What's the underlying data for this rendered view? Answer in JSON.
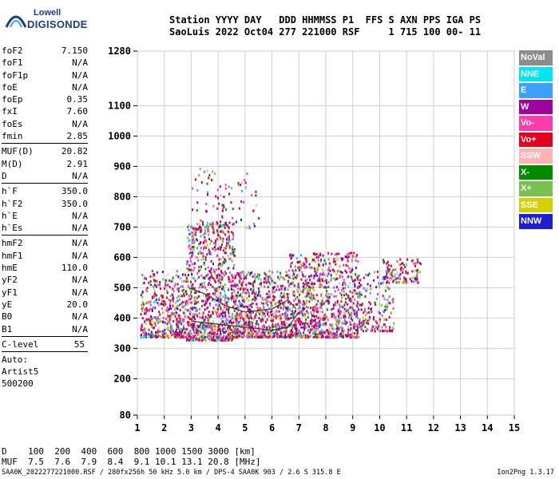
{
  "logo": {
    "line1": "Lowell",
    "line2": "DIGISONDE"
  },
  "header": {
    "line1": "Station YYYY DAY   DDD HHMMSS P1  FFS S AXN PPS IGA PS",
    "line2": "SaoLuis 2022 Oct04 277 221000 RSF     1 715 100 00- 11"
  },
  "params": {
    "group1": [
      {
        "name": "foF2",
        "value": "7.150"
      },
      {
        "name": "foF1",
        "value": "N/A"
      },
      {
        "name": "foF1p",
        "value": "N/A"
      },
      {
        "name": "foE",
        "value": "N/A"
      },
      {
        "name": "foEp",
        "value": "0.35"
      },
      {
        "name": "fxI",
        "value": "7.60"
      },
      {
        "name": "foEs",
        "value": "N/A"
      },
      {
        "name": "fmin",
        "value": "2.85"
      }
    ],
    "group2": [
      {
        "name": "MUF(D)",
        "value": "20.82"
      },
      {
        "name": "M(D)",
        "value": "2.91"
      },
      {
        "name": "D",
        "value": "N/A"
      }
    ],
    "group3": [
      {
        "name": "h`F",
        "value": "350.0"
      },
      {
        "name": "h`F2",
        "value": "350.0"
      },
      {
        "name": "h`E",
        "value": "N/A"
      },
      {
        "name": "h`Es",
        "value": "N/A"
      }
    ],
    "group4": [
      {
        "name": "hmF2",
        "value": "N/A"
      },
      {
        "name": "hmF1",
        "value": "N/A"
      },
      {
        "name": "hmE",
        "value": "110.0"
      },
      {
        "name": "yF2",
        "value": "N/A"
      },
      {
        "name": "yF1",
        "value": "N/A"
      },
      {
        "name": "yE",
        "value": "20.0"
      },
      {
        "name": "B0",
        "value": "N/A"
      },
      {
        "name": "B1",
        "value": "N/A"
      }
    ],
    "clevel": {
      "name": "C-level",
      "value": "55"
    },
    "auto": [
      "Auto:",
      "Artist5",
      "500200"
    ]
  },
  "legend": [
    {
      "label": "NoVal",
      "color": "#8c8c8c"
    },
    {
      "label": "NNE",
      "color": "#00e5ee"
    },
    {
      "label": "E",
      "color": "#3ca0ff"
    },
    {
      "label": "W",
      "color": "#a000a0"
    },
    {
      "label": "Vo-",
      "color": "#ff3caa"
    },
    {
      "label": "Vo+",
      "color": "#e6001e"
    },
    {
      "label": "SSW",
      "color": "#ffb4b4"
    },
    {
      "label": "X-",
      "color": "#008c00"
    },
    {
      "label": "X+",
      "color": "#78c050"
    },
    {
      "label": "SSE",
      "color": "#d2d200"
    },
    {
      "label": "NNW",
      "color": "#1e1ed2"
    }
  ],
  "muf_table": {
    "line1": "D    100  200  400  600  800 1000 1500 3000 [km]",
    "line2": "MUF  7.5  7.6  7.9  8.4  9.1 10.1 13.1 20.8 [MHz]"
  },
  "footer": "SAA0K_2022277221000.RSF / 280fx256h 50 kHz 5.0 km / DPS-4 SAA0K 903 / 2.6 S 315.8 E",
  "version": "Ion2Png 1.3.17",
  "chart_data": {
    "type": "scatter",
    "xlim": [
      1,
      15
    ],
    "ylim": [
      80,
      1280
    ],
    "xticks": [
      1,
      2,
      3,
      4,
      5,
      6,
      7,
      8,
      9,
      10,
      11,
      12,
      13,
      14,
      15
    ],
    "yticks": [
      80,
      200,
      300,
      400,
      500,
      600,
      700,
      800,
      900,
      1000,
      1100,
      1280
    ],
    "grid": true,
    "clusters": [
      {
        "x": [
          1.1,
          2.8
        ],
        "y": [
          340,
          560
        ],
        "n": 420
      },
      {
        "x": [
          2.8,
          4.6
        ],
        "y": [
          330,
          720
        ],
        "n": 900
      },
      {
        "x": [
          4.6,
          6.6
        ],
        "y": [
          340,
          560
        ],
        "n": 700
      },
      {
        "x": [
          6.6,
          9.2
        ],
        "y": [
          340,
          620
        ],
        "n": 900
      },
      {
        "x": [
          9.2,
          10.5
        ],
        "y": [
          360,
          560
        ],
        "n": 160
      },
      {
        "x": [
          10.1,
          11.5
        ],
        "y": [
          520,
          600
        ],
        "n": 120
      },
      {
        "x": [
          3.0,
          5.5
        ],
        "y": [
          700,
          900
        ],
        "n": 90
      }
    ],
    "traces": [
      {
        "points": [
          [
            2.9,
            500
          ],
          [
            3.5,
            480
          ],
          [
            4.3,
            440
          ],
          [
            5.0,
            420
          ],
          [
            6.0,
            430
          ],
          [
            6.6,
            460
          ],
          [
            6.9,
            430
          ]
        ],
        "color": "#333333"
      },
      {
        "points": [
          [
            3.0,
            390
          ],
          [
            4.0,
            380
          ],
          [
            5.0,
            370
          ],
          [
            6.0,
            360
          ],
          [
            6.6,
            370
          ],
          [
            7.0,
            420
          ]
        ],
        "color": "#333333"
      }
    ]
  }
}
